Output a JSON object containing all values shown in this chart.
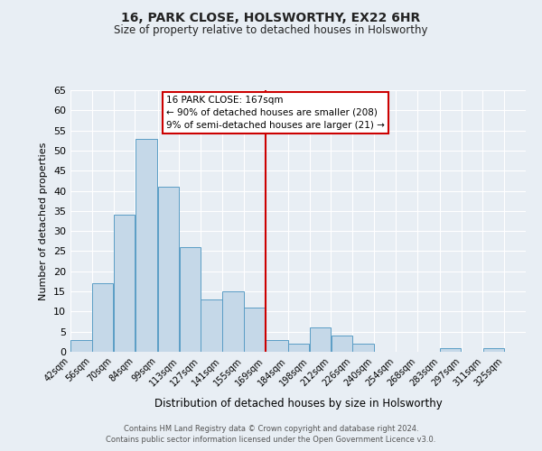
{
  "title": "16, PARK CLOSE, HOLSWORTHY, EX22 6HR",
  "subtitle": "Size of property relative to detached houses in Holsworthy",
  "xlabel": "Distribution of detached houses by size in Holsworthy",
  "ylabel": "Number of detached properties",
  "bar_left_edges": [
    42,
    56,
    70,
    84,
    99,
    113,
    127,
    141,
    155,
    169,
    184,
    198,
    212,
    226,
    240,
    254,
    268,
    283,
    297,
    311
  ],
  "bar_widths": [
    14,
    14,
    14,
    15,
    14,
    14,
    14,
    14,
    14,
    15,
    14,
    14,
    14,
    14,
    14,
    14,
    15,
    14,
    14,
    14
  ],
  "bar_heights": [
    3,
    17,
    34,
    53,
    41,
    26,
    13,
    15,
    11,
    3,
    2,
    6,
    4,
    2,
    0,
    0,
    0,
    1,
    0,
    1
  ],
  "tick_labels": [
    "42sqm",
    "56sqm",
    "70sqm",
    "84sqm",
    "99sqm",
    "113sqm",
    "127sqm",
    "141sqm",
    "155sqm",
    "169sqm",
    "184sqm",
    "198sqm",
    "212sqm",
    "226sqm",
    "240sqm",
    "254sqm",
    "268sqm",
    "283sqm",
    "297sqm",
    "311sqm",
    "325sqm"
  ],
  "tick_positions": [
    42,
    56,
    70,
    84,
    99,
    113,
    127,
    141,
    155,
    169,
    184,
    198,
    212,
    226,
    240,
    254,
    268,
    283,
    297,
    311,
    325
  ],
  "bar_color": "#c5d8e8",
  "bar_edge_color": "#5a9dc5",
  "vline_x": 169,
  "vline_color": "#cc0000",
  "ylim": [
    0,
    65
  ],
  "yticks": [
    0,
    5,
    10,
    15,
    20,
    25,
    30,
    35,
    40,
    45,
    50,
    55,
    60,
    65
  ],
  "xlim": [
    42,
    339
  ],
  "annotation_title": "16 PARK CLOSE: 167sqm",
  "annotation_line1": "← 90% of detached houses are smaller (208)",
  "annotation_line2": "9% of semi-detached houses are larger (21) →",
  "annotation_box_color": "#cc0000",
  "footer1": "Contains HM Land Registry data © Crown copyright and database right 2024.",
  "footer2": "Contains public sector information licensed under the Open Government Licence v3.0.",
  "background_color": "#e8eef4",
  "grid_color": "#ffffff"
}
